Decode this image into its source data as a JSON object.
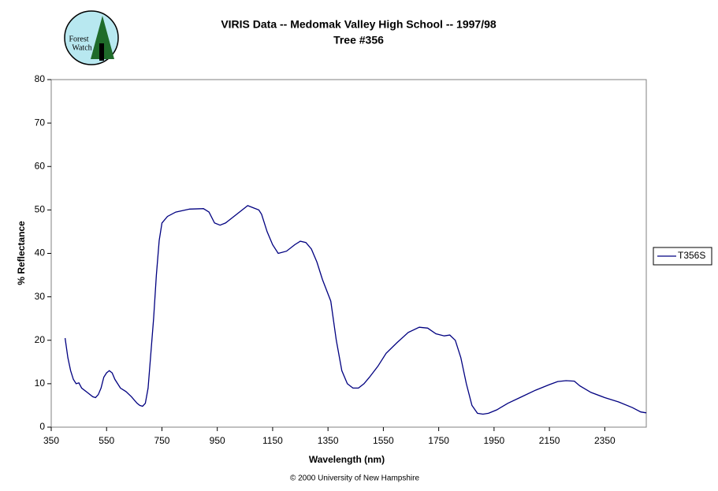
{
  "logo": {
    "line1": "Forest",
    "line2": "Watch"
  },
  "chart_data": {
    "type": "line",
    "title": "VIRIS Data -- Medomak Valley High School -- 1997/98",
    "subtitle": "Tree #356",
    "x_label": "Wavelength (nm)",
    "y_label": "% Reflectance",
    "footer": "© 2000 University of New Hampshire",
    "xlim": [
      350,
      2500
    ],
    "ylim": [
      0,
      80
    ],
    "xticks": [
      350,
      550,
      750,
      950,
      1150,
      1350,
      1550,
      1750,
      1950,
      2150,
      2350
    ],
    "yticks": [
      0,
      10,
      20,
      30,
      40,
      50,
      60,
      70,
      80
    ],
    "grid": false,
    "legend": "right",
    "series": [
      {
        "name": "T356S",
        "color": "#000080",
        "x": [
          400,
          410,
          420,
          430,
          440,
          450,
          460,
          480,
          500,
          510,
          520,
          530,
          540,
          550,
          560,
          570,
          580,
          590,
          600,
          620,
          640,
          660,
          670,
          680,
          690,
          700,
          710,
          720,
          730,
          740,
          750,
          770,
          800,
          850,
          900,
          920,
          940,
          960,
          980,
          1000,
          1020,
          1040,
          1060,
          1080,
          1100,
          1110,
          1130,
          1150,
          1170,
          1200,
          1230,
          1250,
          1270,
          1290,
          1310,
          1330,
          1360,
          1380,
          1400,
          1420,
          1440,
          1460,
          1480,
          1500,
          1530,
          1560,
          1600,
          1640,
          1680,
          1710,
          1740,
          1770,
          1790,
          1810,
          1830,
          1850,
          1870,
          1890,
          1910,
          1930,
          1960,
          2000,
          2050,
          2100,
          2150,
          2180,
          2210,
          2240,
          2260,
          2300,
          2350,
          2400,
          2450,
          2480,
          2500
        ],
        "values": [
          20.5,
          16,
          13,
          11,
          10,
          10.2,
          9,
          8,
          7,
          6.8,
          7.5,
          9,
          11.5,
          12.5,
          13,
          12.5,
          11,
          10,
          9,
          8.2,
          7,
          5.5,
          5,
          4.8,
          5.5,
          9,
          17,
          25,
          35,
          43,
          47,
          48.5,
          49.5,
          50.2,
          50.3,
          49.5,
          47,
          46.5,
          47,
          48,
          49,
          50,
          51,
          50.5,
          50,
          49,
          45,
          42,
          40,
          40.5,
          42,
          42.8,
          42.5,
          41,
          38,
          34,
          29,
          20,
          13,
          10,
          9,
          9,
          10,
          11.5,
          14,
          17,
          19.5,
          21.8,
          23,
          22.8,
          21.5,
          21,
          21.2,
          20,
          16,
          10,
          5,
          3.2,
          3,
          3.2,
          4,
          5.5,
          7,
          8.5,
          9.8,
          10.5,
          10.7,
          10.6,
          9.5,
          8,
          6.8,
          5.8,
          4.5,
          3.5,
          3.3
        ]
      }
    ]
  }
}
